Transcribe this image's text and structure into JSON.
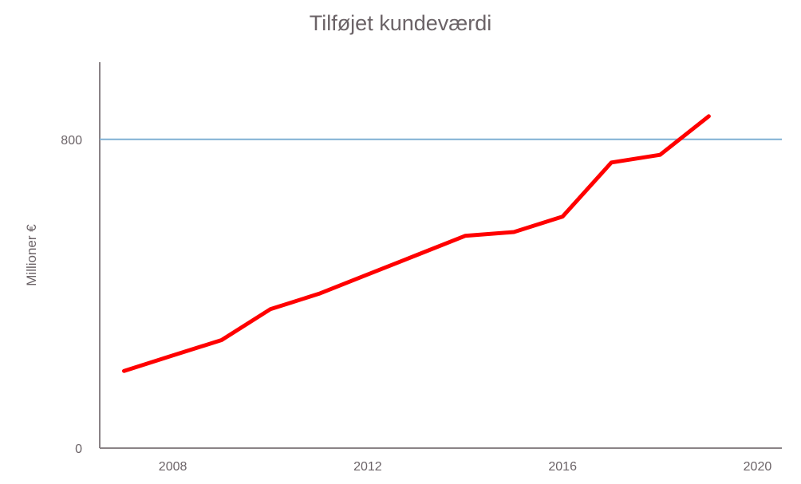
{
  "chart_data": {
    "type": "line",
    "title": "Tilføjet kundeværdi",
    "xlabel": "",
    "ylabel": "Millioner €",
    "x": [
      2007,
      2008,
      2009,
      2010,
      2011,
      2012,
      2013,
      2014,
      2015,
      2016,
      2017,
      2018,
      2019
    ],
    "series": [
      {
        "values": [
          200,
          240,
          280,
          360,
          400,
          450,
          500,
          550,
          560,
          600,
          740,
          760,
          860
        ]
      }
    ],
    "xticks": [
      "2008",
      "2012",
      "2016",
      "2020"
    ],
    "yticks": [
      "0",
      "800"
    ],
    "xlim": [
      2006.5,
      2020.5
    ],
    "ylim": [
      0,
      1000
    ],
    "reference_line": {
      "y": 800
    },
    "grid": false,
    "legend": "none",
    "colors": {
      "line": "#ff0000",
      "reference": "#7fb0d4",
      "axis": "#8a8386",
      "text": "#6b6367"
    }
  }
}
